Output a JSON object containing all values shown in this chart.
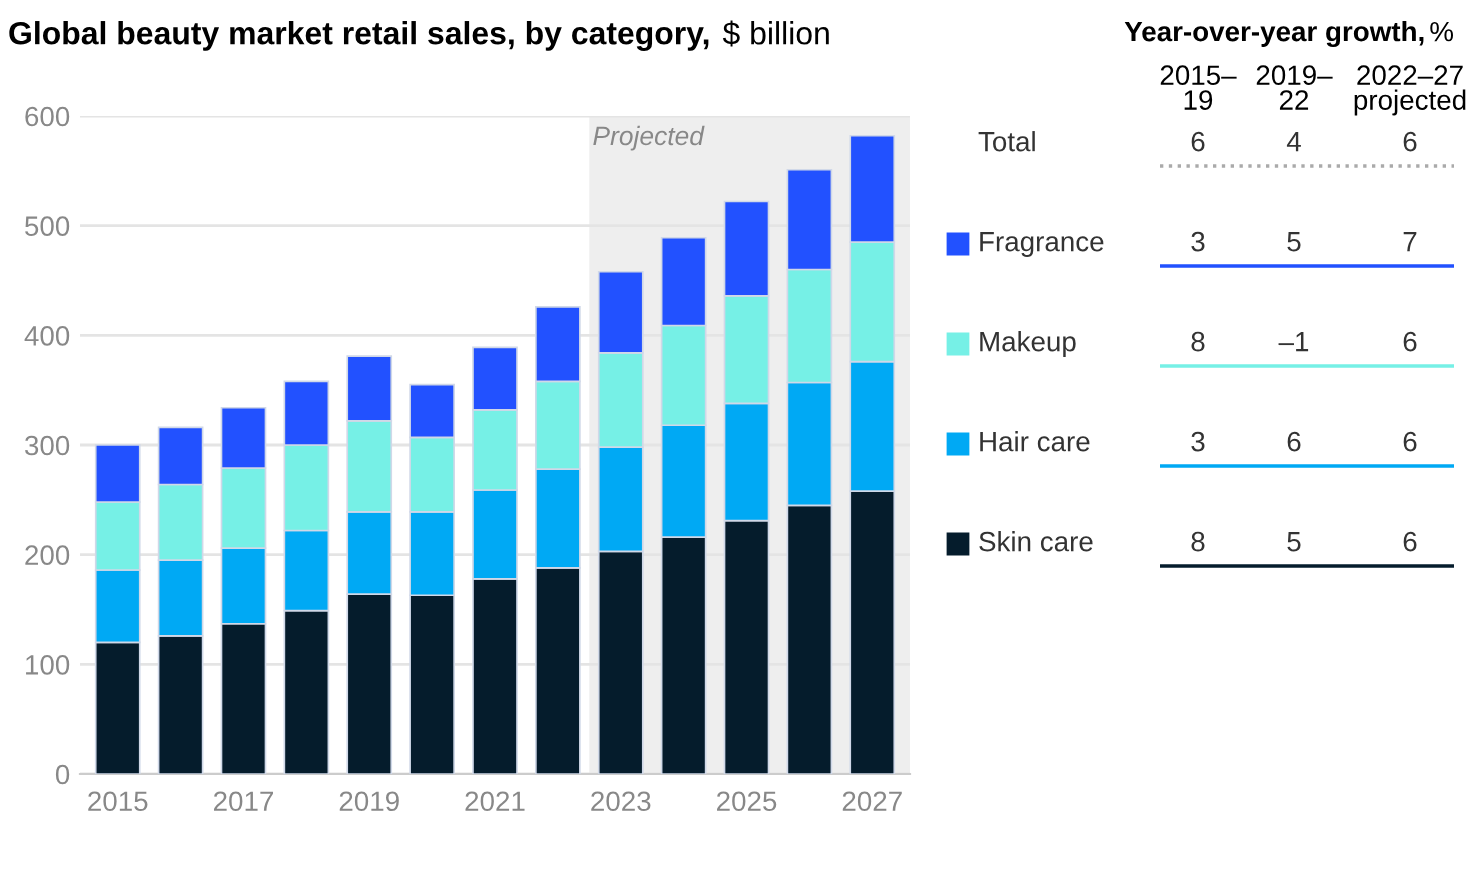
{
  "chart_data": [
    {
      "type": "bar",
      "stacked": true,
      "title": "Global beauty market retail sales, by category,",
      "subtitle": "$ billion",
      "x": [
        2015,
        2016,
        2017,
        2018,
        2019,
        2020,
        2021,
        2022,
        2023,
        2024,
        2025,
        2026,
        2027
      ],
      "series": [
        {
          "name": "Skin care",
          "color": "#051c2c",
          "values": [
            120,
            126,
            137,
            149,
            164,
            163,
            178,
            188,
            203,
            216,
            231,
            245,
            258
          ]
        },
        {
          "name": "Hair care",
          "color": "#00a9f4",
          "values": [
            66,
            69,
            69,
            73,
            75,
            76,
            81,
            90,
            95,
            102,
            107,
            112,
            118
          ]
        },
        {
          "name": "Makeup",
          "color": "#76f0e6",
          "values": [
            62,
            69,
            73,
            78,
            83,
            68,
            73,
            80,
            86,
            91,
            98,
            103,
            109
          ]
        },
        {
          "name": "Fragrance",
          "color": "#2251ff",
          "values": [
            52,
            52,
            55,
            58,
            59,
            48,
            57,
            68,
            74,
            80,
            86,
            91,
            97
          ]
        }
      ],
      "xlim": [
        2014.4,
        2027.6
      ],
      "xticks": [
        2015,
        2017,
        2019,
        2021,
        2023,
        2025,
        2027
      ],
      "ylim": [
        0,
        600
      ],
      "yticks": [
        0,
        100,
        200,
        300,
        400,
        500,
        600
      ],
      "bands": [
        {
          "axis": "x",
          "from": 2022.5,
          "to": 2027.6,
          "label": "Projected",
          "color": "#eeeeee"
        }
      ],
      "grid": "y",
      "legend": "right"
    },
    {
      "type": "other",
      "title": "Year-over-year growth,",
      "subtitle": "%",
      "categories": [
        "2015–\n19",
        "2019–\n22",
        "2022–27\nprojected"
      ],
      "y_categories": [
        "Total",
        null,
        null,
        null,
        null
      ],
      "annotations": [
        "6",
        "4",
        "6",
        "3",
        "5",
        "7",
        "8",
        "–1",
        "6",
        "3",
        "6",
        "6",
        "8",
        "5",
        "6"
      ],
      "colors": [
        "#aaaaaa",
        "#2251ff",
        "#76f0e6",
        "#00a9f4",
        "#051c2c"
      ]
    }
  ]
}
